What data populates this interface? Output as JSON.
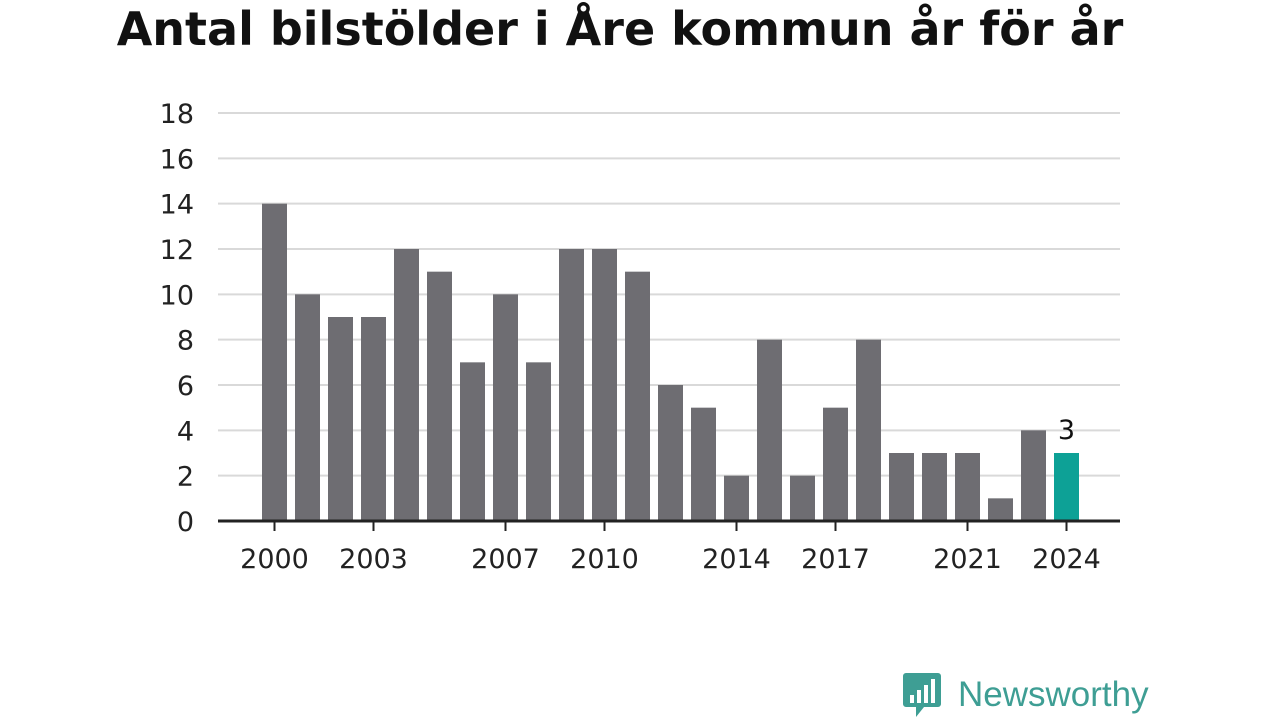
{
  "chart_data": {
    "type": "bar",
    "title": "Antal bilstölder i Åre kommun år för år",
    "xlabel": "",
    "ylabel": "",
    "ylim": [
      0,
      18
    ],
    "yticks": [
      "0",
      "2",
      "4",
      "6",
      "8",
      "10",
      "12",
      "14",
      "16",
      "18"
    ],
    "categories": [
      "2000",
      "2001",
      "2002",
      "2003",
      "2004",
      "2005",
      "2006",
      "2007",
      "2008",
      "2009",
      "2010",
      "2011",
      "2012",
      "2013",
      "2014",
      "2015",
      "2016",
      "2017",
      "2018",
      "2019",
      "2020",
      "2021",
      "2022",
      "2023",
      "2024"
    ],
    "values": [
      14,
      10,
      9,
      9,
      12,
      11,
      7,
      10,
      7,
      12,
      12,
      11,
      6,
      5,
      2,
      8,
      2,
      5,
      8,
      3,
      3,
      3,
      1,
      4,
      3
    ],
    "xtick_labels": [
      "2000",
      "2003",
      "2007",
      "2010",
      "2014",
      "2017",
      "2021",
      "2024"
    ],
    "highlight": {
      "category": "2024",
      "label": "3"
    },
    "grid": true,
    "legend": "none",
    "colors": {
      "bar": "#6e6d72",
      "highlight": "#0da196",
      "grid": "#d9d9d9",
      "axis": "#222222"
    }
  },
  "logo": {
    "text": "Newsworthy",
    "icon": "newsworthy-bar-chart-icon",
    "color": "#3e9e94"
  }
}
